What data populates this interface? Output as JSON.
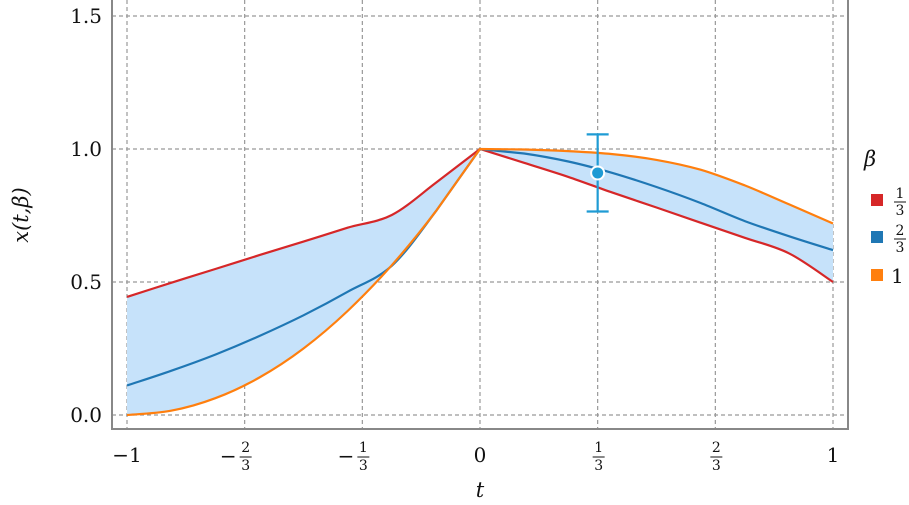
{
  "chart_data": {
    "type": "line",
    "title": "",
    "xlabel": "t",
    "ylabel": "x(t,β)",
    "xlim": [
      -1.0,
      1.04
    ],
    "ylim": [
      -0.05,
      1.58
    ],
    "grid": true,
    "xticks": [
      {
        "value": -1,
        "label": "−1"
      },
      {
        "value": -0.6667,
        "label": "−2/3"
      },
      {
        "value": -0.3333,
        "label": "−1/3"
      },
      {
        "value": 0,
        "label": "0"
      },
      {
        "value": 0.3333,
        "label": "1/3"
      },
      {
        "value": 0.6667,
        "label": "2/3"
      },
      {
        "value": 1,
        "label": "1"
      }
    ],
    "yticks": [
      {
        "value": 0.0,
        "label": "0.0"
      },
      {
        "value": 0.5,
        "label": "0.5"
      },
      {
        "value": 1.0,
        "label": "1.0"
      },
      {
        "value": 1.5,
        "label": "1.5"
      }
    ],
    "series": [
      {
        "name": "1/3",
        "color": "#d62728",
        "x": [
          -1,
          -0.875,
          -0.75,
          -0.625,
          -0.5,
          -0.375,
          -0.25,
          -0.125,
          0,
          0.125,
          0.25,
          0.375,
          0.5,
          0.625,
          0.75,
          0.875,
          1
        ],
        "y": [
          0.444,
          0.497,
          0.549,
          0.601,
          0.652,
          0.704,
          0.752,
          0.873,
          1.0,
          0.948,
          0.895,
          0.836,
          0.78,
          0.723,
          0.666,
          0.608,
          0.5
        ]
      },
      {
        "name": "2/3",
        "color": "#1f77b4",
        "x": [
          -1,
          -0.875,
          -0.75,
          -0.625,
          -0.5,
          -0.375,
          -0.25,
          -0.125,
          0,
          0.125,
          0.25,
          0.375,
          0.5,
          0.625,
          0.75,
          0.875,
          1
        ],
        "y": [
          0.111,
          0.166,
          0.227,
          0.297,
          0.375,
          0.463,
          0.561,
          0.766,
          1.0,
          0.983,
          0.953,
          0.91,
          0.857,
          0.797,
          0.729,
          0.672,
          0.62
        ]
      },
      {
        "name": "1",
        "color": "#ff7f0e",
        "x": [
          -1,
          -0.875,
          -0.75,
          -0.625,
          -0.5,
          -0.375,
          -0.25,
          -0.125,
          0,
          0.125,
          0.25,
          0.375,
          0.5,
          0.625,
          0.75,
          0.875,
          1
        ],
        "y": [
          0.0,
          0.016,
          0.063,
          0.141,
          0.25,
          0.391,
          0.563,
          0.766,
          1.0,
          0.998,
          0.992,
          0.981,
          0.959,
          0.922,
          0.863,
          0.792,
          0.72
        ]
      }
    ],
    "band": {
      "lower_series": "1",
      "upper_series": "1/3",
      "color": "#c6e2fa"
    },
    "errorbar": {
      "x": 0.3333,
      "y": 0.91,
      "yerr": 0.145,
      "color": "#1f9bd4"
    },
    "legend": {
      "title": "β",
      "position": "right",
      "labels": [
        "1/3",
        "2/3",
        "1"
      ]
    }
  }
}
